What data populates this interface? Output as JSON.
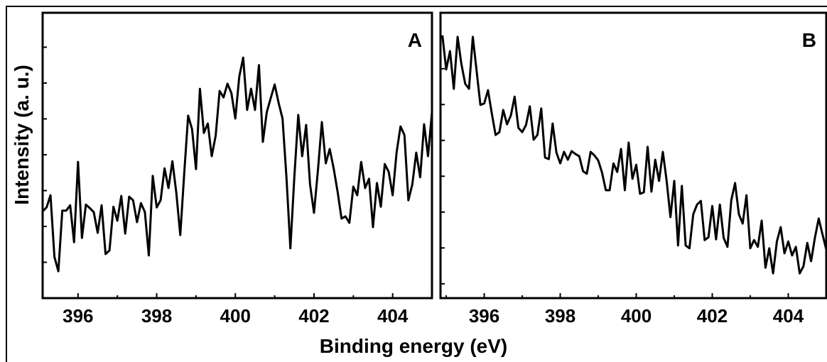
{
  "xlabel": "Binding energy (eV)",
  "ylabel": "Intensity (a. u.)",
  "chart_data": [
    {
      "type": "line",
      "label": "A",
      "color": "#000000",
      "xlim": [
        395.1,
        405
      ],
      "xticks": [
        396,
        398,
        400,
        402,
        404
      ],
      "xminorticks": [
        397,
        399,
        401,
        403
      ],
      "ylim": [
        0,
        7.96
      ],
      "yticks": [
        1,
        2,
        3,
        4,
        5,
        6,
        7
      ],
      "x": [
        395.1,
        395.2,
        395.3,
        395.4,
        395.5,
        395.6,
        395.7,
        395.8,
        395.9,
        396.0,
        396.1,
        396.2,
        396.3,
        396.4,
        396.5,
        396.6,
        396.7,
        396.8,
        396.9,
        397.0,
        397.1,
        397.2,
        397.3,
        397.4,
        397.5,
        397.6,
        397.7,
        397.8,
        397.9,
        398.0,
        398.1,
        398.2,
        398.3,
        398.4,
        398.5,
        398.6,
        398.7,
        398.8,
        398.9,
        399.0,
        399.1,
        399.2,
        399.3,
        399.4,
        399.5,
        399.6,
        399.7,
        399.8,
        399.9,
        400.0,
        400.1,
        400.2,
        400.3,
        400.4,
        400.5,
        400.6,
        400.7,
        400.8,
        400.9,
        401.0,
        401.1,
        401.2,
        401.3,
        401.4,
        401.5,
        401.6,
        401.7,
        401.8,
        401.9,
        402.0,
        402.1,
        402.2,
        402.3,
        402.4,
        402.5,
        402.6,
        402.7,
        402.8,
        402.9,
        403.0,
        403.1,
        403.2,
        403.3,
        403.4,
        403.5,
        403.6,
        403.7,
        403.8,
        403.9,
        404.0,
        404.1,
        404.2,
        404.3,
        404.4,
        404.5,
        404.6,
        404.7,
        404.8,
        404.9,
        405.0
      ],
      "values": [
        2.42,
        2.53,
        2.87,
        1.15,
        0.75,
        2.44,
        2.44,
        2.59,
        1.56,
        3.8,
        1.68,
        2.61,
        2.51,
        2.4,
        1.82,
        2.59,
        1.23,
        1.33,
        2.55,
        2.16,
        2.85,
        1.8,
        2.83,
        2.73,
        2.12,
        2.65,
        2.4,
        1.19,
        3.41,
        2.53,
        2.73,
        3.62,
        3.07,
        3.82,
        2.93,
        1.76,
        3.47,
        5.09,
        4.71,
        3.6,
        5.84,
        4.61,
        4.87,
        3.96,
        4.53,
        5.78,
        5.6,
        5.98,
        5.72,
        5.01,
        6.18,
        6.71,
        5.25,
        5.84,
        5.25,
        6.5,
        4.36,
        5.19,
        5.58,
        5.96,
        5.45,
        5.01,
        3.37,
        1.39,
        3.37,
        5.11,
        3.96,
        4.83,
        3.17,
        2.38,
        3.56,
        4.91,
        3.76,
        4.16,
        3.62,
        2.97,
        2.22,
        2.28,
        2.1,
        3.11,
        2.87,
        3.8,
        3.07,
        3.33,
        1.98,
        3.21,
        2.55,
        3.74,
        3.52,
        2.87,
        4.06,
        4.79,
        4.55,
        2.73,
        3.17,
        4.06,
        3.37,
        4.85,
        3.96,
        5.19
      ]
    },
    {
      "type": "line",
      "label": "B",
      "color": "#000000",
      "xlim": [
        394.85,
        405
      ],
      "xticks": [
        396,
        398,
        400,
        402,
        404
      ],
      "xminorticks": [
        395,
        397,
        399,
        401,
        403,
        405
      ],
      "ylim": [
        -0.4,
        7.56
      ],
      "yticks": [
        0,
        1,
        2,
        3,
        4,
        5,
        6
      ],
      "x": [
        394.9,
        395.0,
        395.1,
        395.2,
        395.3,
        395.4,
        395.5,
        395.6,
        395.7,
        395.8,
        395.9,
        396.0,
        396.1,
        396.2,
        396.3,
        396.4,
        396.5,
        396.6,
        396.7,
        396.8,
        396.9,
        397.0,
        397.1,
        397.2,
        397.3,
        397.4,
        397.5,
        397.6,
        397.7,
        397.8,
        397.9,
        398.0,
        398.1,
        398.2,
        398.3,
        398.4,
        398.5,
        398.6,
        398.7,
        398.8,
        398.9,
        399.0,
        399.1,
        399.2,
        399.3,
        399.4,
        399.5,
        399.6,
        399.7,
        399.8,
        399.9,
        400.0,
        400.1,
        400.2,
        400.3,
        400.4,
        400.5,
        400.6,
        400.7,
        400.8,
        400.9,
        401.0,
        401.1,
        401.2,
        401.3,
        401.4,
        401.5,
        401.6,
        401.7,
        401.8,
        401.9,
        402.0,
        402.1,
        402.2,
        402.3,
        402.4,
        402.5,
        402.6,
        402.7,
        402.8,
        402.9,
        403.0,
        403.1,
        403.2,
        403.3,
        403.4,
        403.5,
        403.6,
        403.7,
        403.8,
        403.9,
        404.0,
        404.1,
        404.2,
        404.3,
        404.4,
        404.5,
        404.6,
        404.7,
        404.8,
        404.9,
        405.0
      ],
      "values": [
        6.93,
        5.98,
        6.49,
        5.44,
        6.89,
        6.13,
        5.58,
        5.44,
        6.89,
        5.94,
        4.99,
        5.03,
        5.4,
        4.75,
        4.15,
        4.23,
        4.85,
        4.45,
        4.69,
        5.22,
        4.35,
        4.23,
        4.43,
        4.95,
        4.02,
        4.15,
        4.89,
        3.52,
        3.48,
        4.47,
        3.66,
        3.36,
        3.68,
        3.46,
        3.7,
        3.62,
        3.56,
        3.14,
        3.07,
        3.68,
        3.58,
        3.44,
        3.1,
        2.61,
        2.61,
        3.36,
        3.12,
        3.76,
        2.61,
        3.94,
        2.93,
        3.32,
        2.51,
        2.55,
        3.82,
        2.57,
        3.46,
        2.87,
        3.68,
        2.87,
        1.86,
        2.87,
        1.07,
        2.73,
        1.07,
        0.99,
        1.94,
        2.21,
        2.31,
        1.22,
        1.3,
        2.17,
        1.24,
        2.21,
        1.28,
        1.03,
        2.33,
        2.81,
        1.94,
        1.68,
        2.47,
        0.99,
        1.22,
        1.03,
        1.76,
        0.45,
        0.99,
        0.29,
        1.18,
        1.58,
        0.85,
        1.18,
        0.79,
        1.03,
        0.29,
        0.49,
        1.14,
        0.63,
        1.28,
        1.82,
        1.38,
        0.95
      ]
    }
  ]
}
